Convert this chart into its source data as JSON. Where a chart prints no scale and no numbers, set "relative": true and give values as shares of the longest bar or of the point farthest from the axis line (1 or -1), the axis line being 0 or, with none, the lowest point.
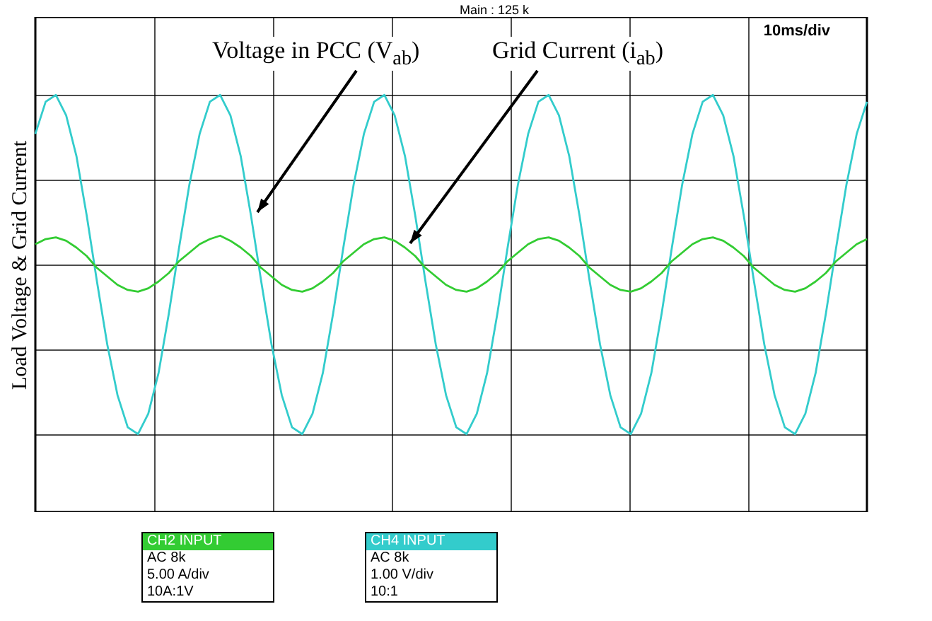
{
  "chart_data": {
    "type": "line",
    "relative": true,
    "ylabel": "Load Voltage & Grid Current",
    "grid": true,
    "tick_labels": false,
    "legend": false,
    "marker": "none",
    "line_style": "solid",
    "categories": [
      null,
      null,
      null,
      null,
      null,
      null,
      null,
      null,
      null,
      null,
      null,
      null,
      null,
      null,
      null,
      null,
      null,
      null,
      null,
      null,
      null,
      null,
      null,
      null,
      null,
      null,
      null,
      null,
      null,
      null,
      null,
      null,
      null,
      null,
      null,
      null,
      null,
      null,
      null,
      null,
      null,
      null,
      null,
      null,
      null,
      null,
      null,
      null,
      null,
      null,
      null,
      null,
      null,
      null,
      null,
      null,
      null,
      null,
      null,
      null,
      null,
      null,
      null,
      null,
      null,
      null,
      null,
      null,
      null,
      null,
      null,
      null,
      null,
      null,
      null,
      null,
      null,
      null,
      null,
      null,
      null,
      null
    ],
    "series": [
      {
        "color": "#33cccc",
        "values": [
          0.77,
          0.96,
          1.0,
          0.88,
          0.64,
          0.29,
          -0.1,
          -0.47,
          -0.77,
          -0.96,
          -1.0,
          -0.88,
          -0.64,
          -0.29,
          0.1,
          0.47,
          0.77,
          0.96,
          1.0,
          0.88,
          0.64,
          0.29,
          -0.1,
          -0.47,
          -0.77,
          -0.96,
          -1.0,
          -0.88,
          -0.64,
          -0.29,
          0.1,
          0.47,
          0.77,
          0.96,
          1.0,
          0.88,
          0.64,
          0.29,
          -0.1,
          -0.47,
          -0.77,
          -0.96,
          -1.0,
          -0.88,
          -0.64,
          -0.29,
          0.1,
          0.47,
          0.77,
          0.96,
          1.0,
          0.88,
          0.64,
          0.29,
          -0.1,
          -0.47,
          -0.77,
          -0.96,
          -1.0,
          -0.88,
          -0.64,
          -0.29,
          0.1,
          0.47,
          0.77,
          0.96,
          1.0,
          0.88,
          0.64,
          0.29,
          -0.1,
          -0.47,
          -0.77,
          -0.96,
          -1.0,
          -0.88,
          -0.64,
          -0.29,
          0.1,
          0.47,
          0.77,
          0.96
        ]
      },
      {
        "color": "#33cc33",
        "values": [
          0.12,
          0.15,
          0.16,
          0.14,
          0.1,
          0.05,
          -0.02,
          -0.07,
          -0.12,
          -0.15,
          -0.16,
          -0.14,
          -0.1,
          -0.05,
          0.02,
          0.07,
          0.12,
          0.15,
          0.17,
          0.14,
          0.1,
          0.05,
          -0.02,
          -0.07,
          -0.12,
          -0.15,
          -0.16,
          -0.14,
          -0.1,
          -0.05,
          0.02,
          0.07,
          0.12,
          0.15,
          0.16,
          0.14,
          0.1,
          0.05,
          -0.02,
          -0.07,
          -0.12,
          -0.15,
          -0.16,
          -0.14,
          -0.1,
          -0.05,
          0.02,
          0.07,
          0.12,
          0.15,
          0.16,
          0.14,
          0.1,
          0.05,
          -0.02,
          -0.07,
          -0.12,
          -0.15,
          -0.16,
          -0.14,
          -0.1,
          -0.05,
          0.02,
          0.07,
          0.12,
          0.15,
          0.16,
          0.14,
          0.1,
          0.05,
          -0.02,
          -0.07,
          -0.12,
          -0.15,
          -0.16,
          -0.14,
          -0.1,
          -0.05,
          0.02,
          0.07,
          0.12,
          0.15
        ]
      }
    ],
    "annotations": [
      "Voltage in PCC (V$_{ab}$)",
      "Grid Current (i$_{ab}$)",
      "Main : 125 k",
      "10ms/div",
      "CH2 INPUT",
      "AC 8k",
      "5.00 A/div",
      "10A:1V",
      "CH4 INPUT",
      "AC 8k",
      "1.00 V/div",
      "10:1"
    ]
  }
}
